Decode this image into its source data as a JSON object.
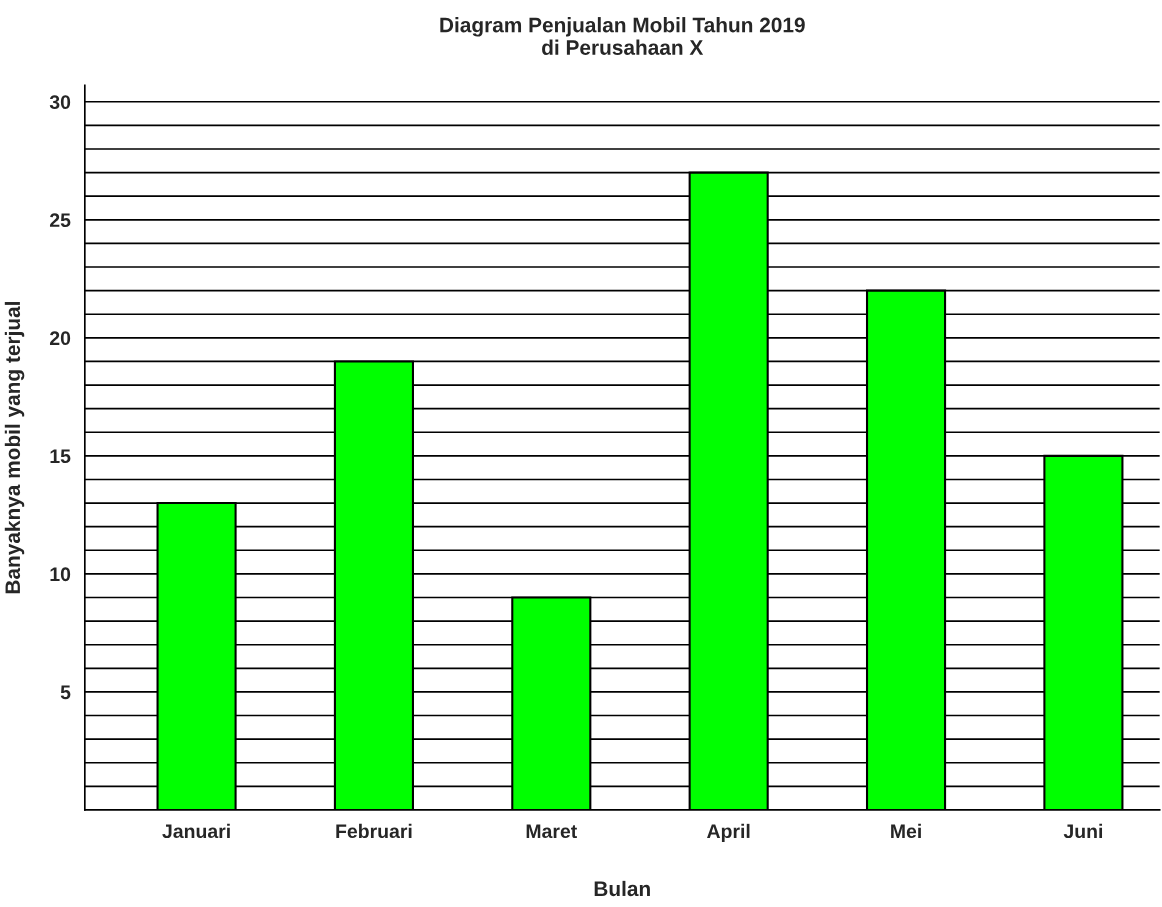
{
  "chart_data": {
    "type": "bar",
    "title": "Diagram Penjualan Mobil Tahun 2019\ndi Perusahaan X",
    "xlabel": "Bulan",
    "ylabel": "Banyaknya mobil yang terjual",
    "categories": [
      "Januari",
      "Februari",
      "Maret",
      "April",
      "Mei",
      "Juni"
    ],
    "values": [
      13,
      19,
      9,
      27,
      22,
      15
    ],
    "color": "#00ff00",
    "ylim": [
      0,
      30.7
    ],
    "yticks": [
      {
        "value": 1,
        "label": null
      },
      {
        "value": 2,
        "label": null
      },
      {
        "value": 3,
        "label": null
      },
      {
        "value": 4,
        "label": null
      },
      5,
      {
        "value": 6,
        "label": null
      },
      {
        "value": 7,
        "label": null
      },
      {
        "value": 8,
        "label": null
      },
      {
        "value": 9,
        "label": null
      },
      10,
      {
        "value": 11,
        "label": null
      },
      {
        "value": 12,
        "label": null
      },
      {
        "value": 13,
        "label": null
      },
      {
        "value": 14,
        "label": null
      },
      15,
      {
        "value": 16,
        "label": null
      },
      {
        "value": 17,
        "label": null
      },
      {
        "value": 18,
        "label": null
      },
      {
        "value": 19,
        "label": null
      },
      20,
      {
        "value": 21,
        "label": null
      },
      {
        "value": 22,
        "label": null
      },
      {
        "value": 23,
        "label": null
      },
      {
        "value": 24,
        "label": null
      },
      25,
      {
        "value": 26,
        "label": null
      },
      {
        "value": 27,
        "label": null
      },
      {
        "value": 28,
        "label": null
      },
      {
        "value": 29,
        "label": null
      },
      30
    ],
    "grid": "y",
    "legend": false
  }
}
